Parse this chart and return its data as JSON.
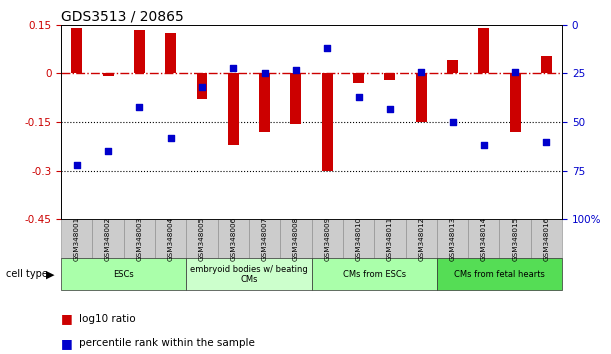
{
  "title": "GDS3513 / 20865",
  "samples": [
    "GSM348001",
    "GSM348002",
    "GSM348003",
    "GSM348004",
    "GSM348005",
    "GSM348006",
    "GSM348007",
    "GSM348008",
    "GSM348009",
    "GSM348010",
    "GSM348011",
    "GSM348012",
    "GSM348013",
    "GSM348014",
    "GSM348015",
    "GSM348016"
  ],
  "log10_ratio": [
    0.14,
    -0.008,
    0.135,
    0.125,
    -0.08,
    -0.22,
    -0.18,
    -0.155,
    -0.3,
    -0.03,
    -0.02,
    -0.15,
    0.04,
    0.14,
    -0.18,
    0.055
  ],
  "percentile_rank": [
    72,
    65,
    42,
    58,
    32,
    22,
    25,
    23,
    12,
    37,
    43,
    24,
    50,
    62,
    24,
    60
  ],
  "bar_color": "#cc0000",
  "dot_color": "#0000cc",
  "left_yticks": [
    0.15,
    0,
    -0.15,
    -0.3,
    -0.45
  ],
  "right_ytick_labels": [
    "100%",
    "75",
    "50",
    "25",
    "0"
  ],
  "right_yticks_pct": [
    100,
    75,
    50,
    25,
    0
  ],
  "dotted_lines": [
    -0.15,
    -0.3
  ],
  "cell_types": [
    {
      "label": "ESCs",
      "start": 0,
      "end": 3,
      "color": "#aaffaa"
    },
    {
      "label": "embryoid bodies w/ beating\nCMs",
      "start": 4,
      "end": 7,
      "color": "#ccffcc"
    },
    {
      "label": "CMs from ESCs",
      "start": 8,
      "end": 11,
      "color": "#aaffaa"
    },
    {
      "label": "CMs from fetal hearts",
      "start": 12,
      "end": 15,
      "color": "#55dd55"
    }
  ],
  "legend_items": [
    {
      "label": "log10 ratio",
      "color": "#cc0000"
    },
    {
      "label": "percentile rank within the sample",
      "color": "#0000cc"
    }
  ],
  "bg_color": "#ffffff",
  "tick_label_color_left": "#cc0000",
  "tick_label_color_right": "#0000cc",
  "bar_width": 0.35
}
